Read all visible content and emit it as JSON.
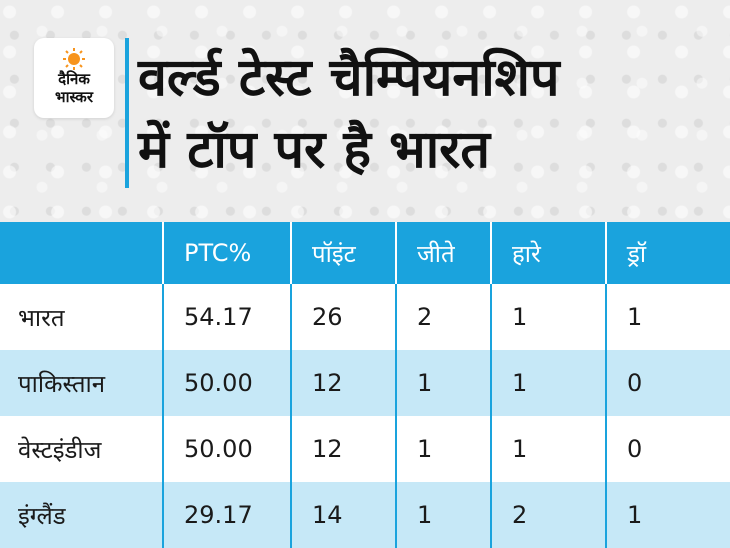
{
  "brand": {
    "line1": "दैनिक",
    "line2": "भास्कर",
    "accent_color": "#f7941d"
  },
  "title_lines": [
    "वर्ल्ड टेस्ट चैम्पियनशिप",
    "में टॉप पर है भारत"
  ],
  "colors": {
    "header_blue": "#1aa3dd",
    "row_alt": "#c6e8f7"
  },
  "chart_data": {
    "type": "table",
    "title": "वर्ल्ड टेस्ट चैम्पियनशिप में टॉप पर है भारत",
    "columns": [
      "",
      "PTC%",
      "पॉइंट",
      "जीते",
      "हारे",
      "ड्रॉ"
    ],
    "rows": [
      [
        "भारत",
        "54.17",
        "26",
        "2",
        "1",
        "1"
      ],
      [
        "पाकिस्तान",
        "50.00",
        "12",
        "1",
        "1",
        "0"
      ],
      [
        "वेस्टइंडीज",
        "50.00",
        "12",
        "1",
        "1",
        "0"
      ],
      [
        "इंग्लैंड",
        "29.17",
        "14",
        "1",
        "2",
        "1"
      ]
    ]
  }
}
